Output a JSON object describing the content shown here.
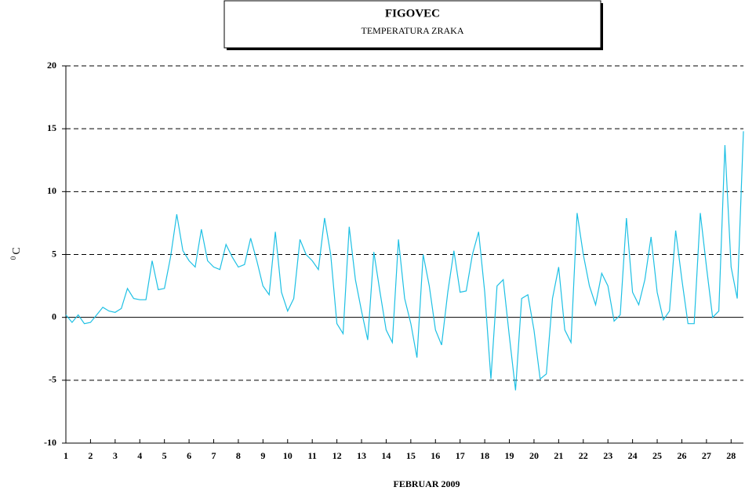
{
  "chart_data": {
    "type": "line",
    "title": "FIGOVEC",
    "subtitle": "TEMPERATURA ZRAKA",
    "ylabel_sup": "0",
    "ylabel": "C",
    "xlabel": "FEBRUAR 2009",
    "xlim": [
      1,
      28.5
    ],
    "xticks": [
      1,
      2,
      3,
      4,
      5,
      6,
      7,
      8,
      9,
      10,
      11,
      12,
      13,
      14,
      15,
      16,
      17,
      18,
      19,
      20,
      21,
      22,
      23,
      24,
      25,
      26,
      27,
      28
    ],
    "ylim": [
      -10,
      20
    ],
    "yticks": [
      -10,
      -5,
      0,
      5,
      10,
      15,
      20
    ],
    "grid": true,
    "grid_style": "dashed",
    "zero_line": true,
    "x": [
      1,
      1.25,
      1.5,
      1.75,
      2,
      2.25,
      2.5,
      2.75,
      3,
      3.25,
      3.5,
      3.75,
      4,
      4.25,
      4.5,
      4.75,
      5,
      5.25,
      5.5,
      5.75,
      6,
      6.25,
      6.5,
      6.75,
      7,
      7.25,
      7.5,
      7.75,
      8,
      8.25,
      8.5,
      8.75,
      9,
      9.25,
      9.5,
      9.75,
      10,
      10.25,
      10.5,
      10.75,
      11,
      11.25,
      11.5,
      11.75,
      12,
      12.25,
      12.5,
      12.75,
      13,
      13.25,
      13.5,
      13.75,
      14,
      14.25,
      14.5,
      14.75,
      15,
      15.25,
      15.5,
      15.75,
      16,
      16.25,
      16.5,
      16.75,
      17,
      17.25,
      17.5,
      17.75,
      18,
      18.25,
      18.5,
      18.75,
      19,
      19.25,
      19.5,
      19.75,
      20,
      20.25,
      20.5,
      20.75,
      21,
      21.25,
      21.5,
      21.75,
      22,
      22.25,
      22.5,
      22.75,
      23,
      23.25,
      23.5,
      23.75,
      24,
      24.25,
      24.5,
      24.75,
      25,
      25.25,
      25.5,
      25.75,
      26,
      26.25,
      26.5,
      26.75,
      27,
      27.25,
      27.5,
      27.75,
      28,
      28.25,
      28.5
    ],
    "series": [
      {
        "name": "TEMPERATURA ZRAKA",
        "color": "#1ec0e4",
        "values": [
          0.2,
          -0.4,
          0.2,
          -0.5,
          -0.4,
          0.2,
          0.8,
          0.5,
          0.4,
          0.7,
          2.3,
          1.5,
          1.4,
          1.4,
          4.5,
          2.2,
          2.3,
          4.8,
          8.2,
          5.3,
          4.5,
          4.0,
          7.0,
          4.5,
          4.0,
          3.8,
          5.8,
          4.8,
          4.0,
          4.2,
          6.3,
          4.5,
          2.5,
          1.8,
          6.8,
          2.0,
          0.5,
          1.5,
          6.2,
          5.0,
          4.5,
          3.8,
          7.9,
          5.0,
          -0.5,
          -1.3,
          7.2,
          3.0,
          0.5,
          -1.8,
          5.2,
          2.0,
          -1.0,
          -2.0,
          6.2,
          1.5,
          -0.5,
          -3.2,
          5.0,
          2.5,
          -1.0,
          -2.2,
          2.0,
          5.3,
          2.0,
          2.1,
          5.0,
          6.8,
          2.0,
          -4.9,
          2.5,
          3.0,
          -1.5,
          -5.8,
          1.5,
          1.8,
          -1.0,
          -4.9,
          -4.5,
          1.5,
          4.0,
          -1.0,
          -2.0,
          8.3,
          5.0,
          2.5,
          1.0,
          3.5,
          2.5,
          -0.3,
          0.2,
          7.9,
          2.0,
          1.0,
          3.0,
          6.4,
          2.0,
          -0.2,
          0.5,
          6.9,
          3.0,
          -0.5,
          -0.5,
          8.3,
          4.0,
          0.0,
          0.5,
          13.7,
          4.0,
          1.5,
          14.8
        ]
      }
    ]
  }
}
